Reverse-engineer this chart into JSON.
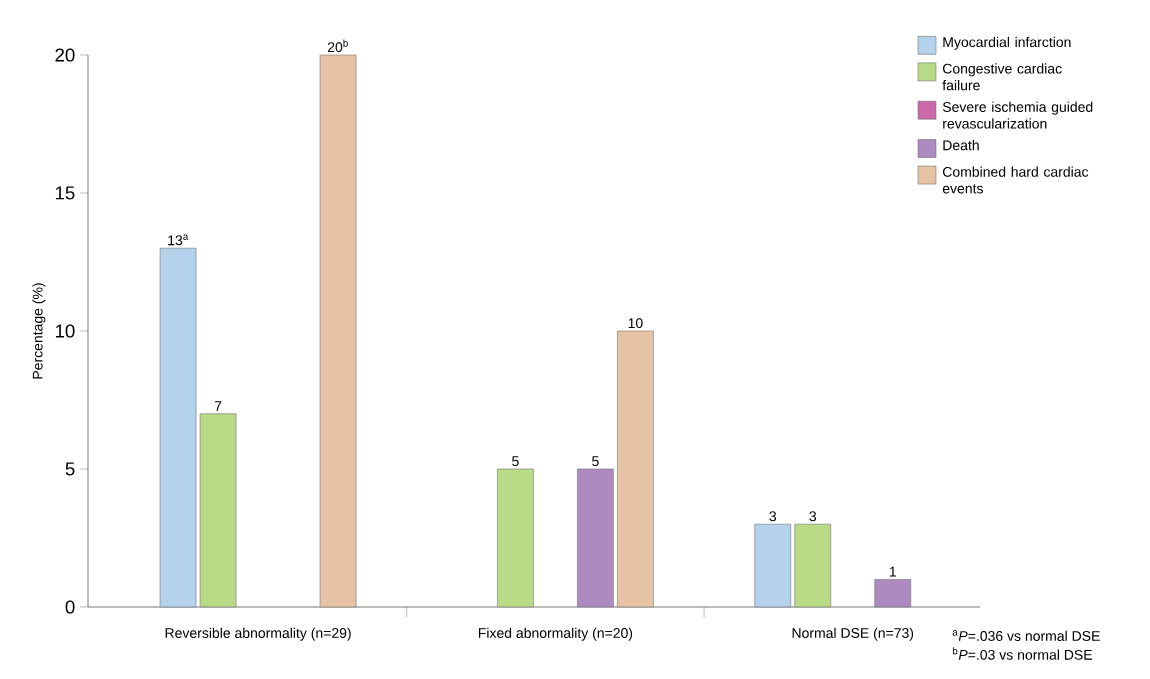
{
  "chart_data": {
    "type": "bar",
    "ylabel": "Percentage (%)",
    "categories": [
      "Reversible abnormality (n=29)",
      "Fixed abnormality (n=20)",
      "Normal DSE (n=73)"
    ],
    "series": [
      {
        "name": "Myocardial infarction",
        "color": "#b5d2ec",
        "values": [
          13,
          null,
          3
        ],
        "value_labels": [
          "13$^{a}$",
          null,
          "3"
        ]
      },
      {
        "name": "Congestive cardiac failure",
        "color": "#b9da86",
        "values": [
          7,
          5,
          3
        ],
        "value_labels": [
          "7",
          "5",
          "3"
        ]
      },
      {
        "name": "Severe ischemia guided revascularization",
        "color": "#cc6aa9",
        "values": [
          null,
          null,
          null
        ],
        "value_labels": [
          null,
          null,
          null
        ]
      },
      {
        "name": "Death",
        "color": "#ad8bc0",
        "values": [
          null,
          5,
          1
        ],
        "value_labels": [
          null,
          "5",
          "1"
        ]
      },
      {
        "name": "Combined hard cardiac events",
        "color": "#e6c3a5",
        "values": [
          20,
          10,
          null
        ],
        "value_labels": [
          "20$^{b}$",
          "10",
          null
        ]
      }
    ],
    "ylim": [
      0,
      20
    ],
    "yticks": [
      0,
      5,
      10,
      15,
      20
    ],
    "grid": false,
    "legend": "top right",
    "annotations": [
      "$^{a}$*P*=.036 vs normal DSE",
      "$^{b}$*P*=.03 vs normal DSE"
    ]
  }
}
